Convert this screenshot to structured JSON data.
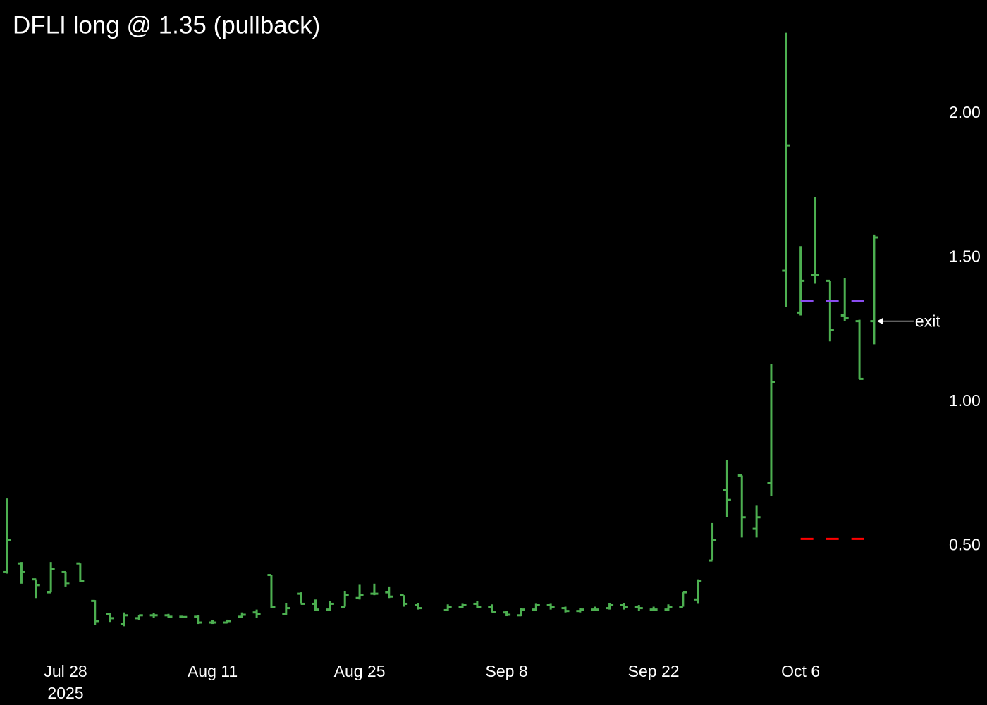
{
  "chart_data": {
    "type": "ohlc",
    "title": "DFLI long @ 1.35 (pullback)",
    "color": "#4caf50",
    "x": [
      "2025-07-22",
      "2025-07-23",
      "2025-07-24",
      "2025-07-25",
      "2025-07-28",
      "2025-07-29",
      "2025-07-30",
      "2025-07-31",
      "2025-08-01",
      "2025-08-04",
      "2025-08-05",
      "2025-08-06",
      "2025-08-07",
      "2025-08-08",
      "2025-08-11",
      "2025-08-12",
      "2025-08-13",
      "2025-08-14",
      "2025-08-15",
      "2025-08-18",
      "2025-08-19",
      "2025-08-20",
      "2025-08-21",
      "2025-08-22",
      "2025-08-25",
      "2025-08-26",
      "2025-08-27",
      "2025-08-28",
      "2025-08-29",
      "2025-09-02",
      "2025-09-03",
      "2025-09-04",
      "2025-09-05",
      "2025-09-08",
      "2025-09-09",
      "2025-09-10",
      "2025-09-11",
      "2025-09-12",
      "2025-09-15",
      "2025-09-16",
      "2025-09-17",
      "2025-09-18",
      "2025-09-19",
      "2025-09-22",
      "2025-09-23",
      "2025-09-24",
      "2025-09-25",
      "2025-09-26",
      "2025-09-29",
      "2025-09-30",
      "2025-10-01",
      "2025-10-02",
      "2025-10-03",
      "2025-10-06",
      "2025-10-07",
      "2025-10-08",
      "2025-10-09",
      "2025-10-10",
      "2025-10-13"
    ],
    "open": [
      0.41,
      0.44,
      0.385,
      0.34,
      0.41,
      0.44,
      0.31,
      0.265,
      0.23,
      0.25,
      0.26,
      0.26,
      0.255,
      0.255,
      0.235,
      0.235,
      0.255,
      0.27,
      0.4,
      0.265,
      0.335,
      0.3,
      0.28,
      0.29,
      0.32,
      0.335,
      0.34,
      0.33,
      0.295,
      0.278,
      0.29,
      0.3,
      0.29,
      0.27,
      0.26,
      0.28,
      0.295,
      0.285,
      0.275,
      0.28,
      0.285,
      0.295,
      0.29,
      0.28,
      0.28,
      0.29,
      0.315,
      0.45,
      0.695,
      0.745,
      0.56,
      0.72,
      1.455,
      1.31,
      1.44,
      1.42,
      1.3,
      1.28,
      1.28
    ],
    "high": [
      0.665,
      0.445,
      0.385,
      0.445,
      0.41,
      0.44,
      0.313,
      0.267,
      0.27,
      0.262,
      0.267,
      0.265,
      0.256,
      0.26,
      0.243,
      0.245,
      0.27,
      0.28,
      0.4,
      0.303,
      0.34,
      0.315,
      0.31,
      0.345,
      0.366,
      0.37,
      0.36,
      0.33,
      0.303,
      0.298,
      0.3,
      0.31,
      0.298,
      0.276,
      0.286,
      0.3,
      0.3,
      0.29,
      0.286,
      0.29,
      0.303,
      0.303,
      0.296,
      0.29,
      0.298,
      0.34,
      0.385,
      0.58,
      0.8,
      0.745,
      0.64,
      1.13,
      2.28,
      1.54,
      1.71,
      1.42,
      1.43,
      1.285,
      1.58
    ],
    "low": [
      0.405,
      0.37,
      0.32,
      0.34,
      0.36,
      0.377,
      0.227,
      0.237,
      0.222,
      0.243,
      0.25,
      0.252,
      0.252,
      0.23,
      0.23,
      0.232,
      0.25,
      0.25,
      0.286,
      0.262,
      0.3,
      0.276,
      0.276,
      0.29,
      0.315,
      0.33,
      0.32,
      0.29,
      0.28,
      0.276,
      0.286,
      0.286,
      0.27,
      0.257,
      0.257,
      0.276,
      0.28,
      0.27,
      0.27,
      0.276,
      0.28,
      0.28,
      0.276,
      0.276,
      0.276,
      0.29,
      0.3,
      0.45,
      0.6,
      0.53,
      0.53,
      0.675,
      1.33,
      1.3,
      1.41,
      1.21,
      1.28,
      1.08,
      1.2
    ],
    "close": [
      0.52,
      0.41,
      0.365,
      0.42,
      0.37,
      0.38,
      0.24,
      0.25,
      0.26,
      0.26,
      0.26,
      0.255,
      0.254,
      0.235,
      0.235,
      0.24,
      0.262,
      0.265,
      0.29,
      0.285,
      0.3,
      0.28,
      0.3,
      0.33,
      0.33,
      0.335,
      0.325,
      0.3,
      0.285,
      0.29,
      0.295,
      0.29,
      0.272,
      0.262,
      0.28,
      0.295,
      0.29,
      0.275,
      0.28,
      0.28,
      0.295,
      0.29,
      0.285,
      0.28,
      0.29,
      0.34,
      0.38,
      0.52,
      0.66,
      0.6,
      0.6,
      1.07,
      1.89,
      1.42,
      1.44,
      1.25,
      1.29,
      1.08,
      1.57
    ],
    "ylim": [
      -0.051,
      2.394
    ],
    "yticks": [
      {
        "value": 0.5,
        "label": "0.50"
      },
      {
        "value": 1.0,
        "label": "1.00"
      },
      {
        "value": 1.5,
        "label": "1.50"
      },
      {
        "value": 2.0,
        "label": "2.00"
      }
    ],
    "xticks": [
      {
        "value": "2025-07-28",
        "label": "Jul 28"
      },
      {
        "value": "2025-08-11",
        "label": "Aug 11"
      },
      {
        "value": "2025-08-25",
        "label": "Aug 25"
      },
      {
        "value": "2025-09-08",
        "label": "Sep 8"
      },
      {
        "value": "2025-09-22",
        "label": "Sep 22"
      },
      {
        "value": "2025-10-06",
        "label": "Oct 6"
      }
    ],
    "year": "2025",
    "levels": [
      {
        "value": 1.35,
        "color": "#8a4cf0",
        "from": "2025-10-06",
        "to": "2025-10-10"
      },
      {
        "value": 0.525,
        "color": "#ff0000",
        "from": "2025-10-06",
        "to": "2025-10-10"
      }
    ],
    "annotation": {
      "text": "exit",
      "x": "2025-10-13",
      "y": 1.28
    }
  }
}
